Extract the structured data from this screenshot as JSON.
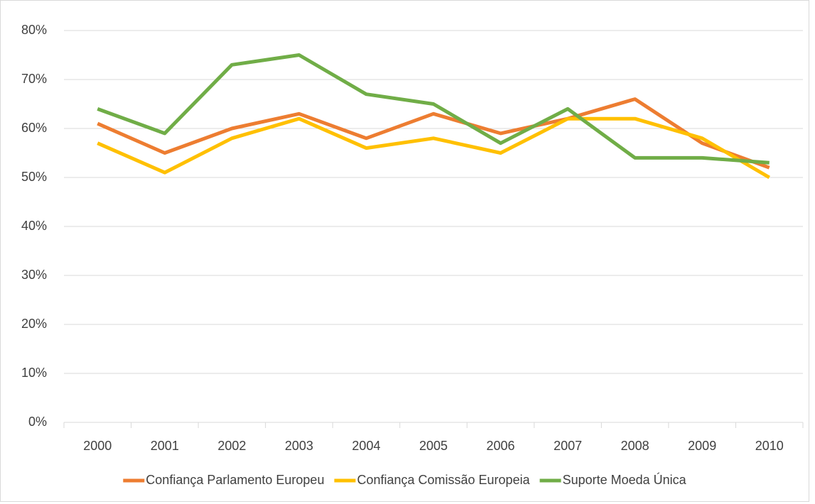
{
  "chart_data": {
    "type": "line",
    "categories": [
      "2000",
      "2001",
      "2002",
      "2003",
      "2004",
      "2005",
      "2006",
      "2007",
      "2008",
      "2009",
      "2010"
    ],
    "series": [
      {
        "name": "Confiança Parlamento Europeu",
        "color": "#ed7d31",
        "values": [
          61,
          55,
          60,
          63,
          58,
          63,
          59,
          62,
          66,
          57,
          52
        ]
      },
      {
        "name": "Confiança Comissão Europeia",
        "color": "#ffc000",
        "values": [
          57,
          51,
          58,
          62,
          56,
          58,
          55,
          62,
          62,
          58,
          50
        ]
      },
      {
        "name": "Suporte Moeda Única",
        "color": "#70ad47",
        "values": [
          64,
          59,
          73,
          75,
          67,
          65,
          57,
          64,
          54,
          54,
          53
        ]
      }
    ],
    "ylim": [
      0,
      80
    ],
    "yticks": [
      {
        "value": 0,
        "label": "0%"
      },
      {
        "value": 10,
        "label": "10%"
      },
      {
        "value": 20,
        "label": "20%"
      },
      {
        "value": 30,
        "label": "30%"
      },
      {
        "value": 40,
        "label": "40%"
      },
      {
        "value": 50,
        "label": "50%"
      },
      {
        "value": 60,
        "label": "60%"
      },
      {
        "value": 70,
        "label": "70%"
      },
      {
        "value": 80,
        "label": "80%"
      }
    ],
    "grid": true,
    "legend": "bottom"
  }
}
